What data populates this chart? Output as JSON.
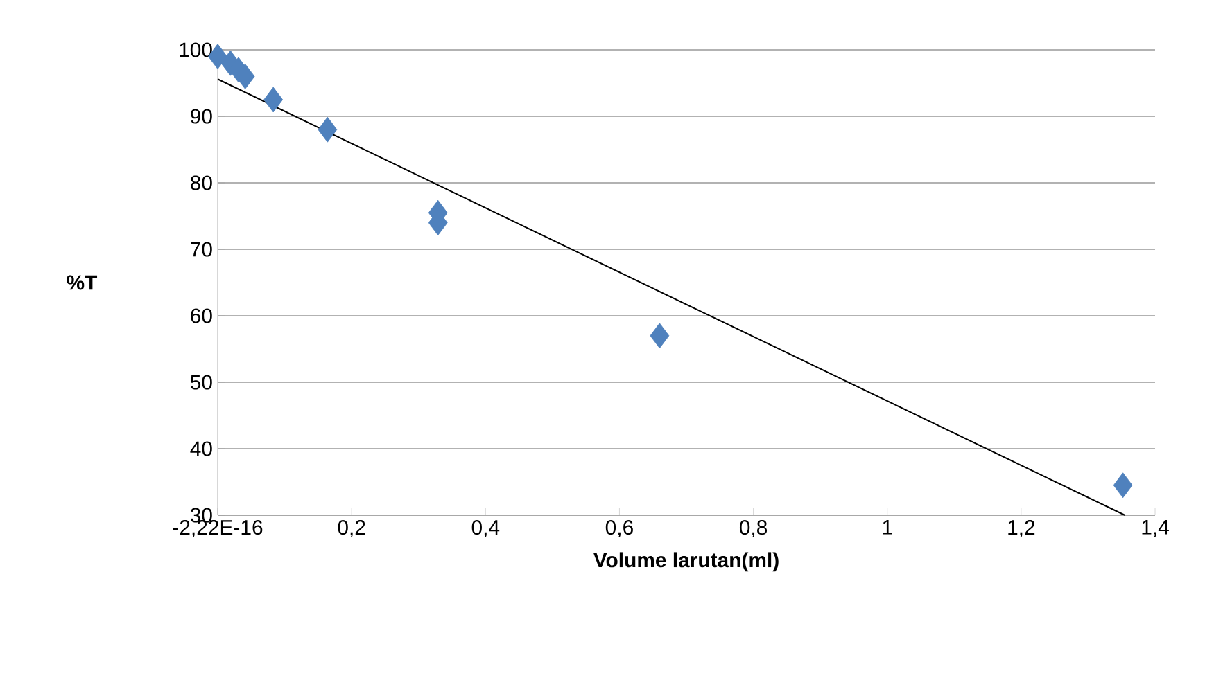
{
  "chart_data": {
    "type": "scatter",
    "xlabel": "Volume larutan(ml)",
    "ylabel": "%T",
    "xlim": [
      0,
      1.4
    ],
    "ylim": [
      30,
      100
    ],
    "xticks": [
      {
        "value": 0,
        "label": "-2,22E-16"
      },
      {
        "value": 0.2,
        "label": "0,2"
      },
      {
        "value": 0.4,
        "label": "0,4"
      },
      {
        "value": 0.6,
        "label": "0,6"
      },
      {
        "value": 0.8,
        "label": "0,8"
      },
      {
        "value": 1,
        "label": "1"
      },
      {
        "value": 1.2,
        "label": "1,2"
      },
      {
        "value": 1.4,
        "label": "1,4"
      }
    ],
    "yticks": [
      30,
      40,
      50,
      60,
      70,
      80,
      90,
      100
    ],
    "grid": "y",
    "marker": "diamond",
    "series": [
      {
        "color": "#4f81bd",
        "x": [
          0,
          0.019,
          0.031,
          0.041,
          0.083,
          0.164,
          0.329,
          0.329,
          0.66,
          1.352
        ],
        "values": [
          99,
          98,
          97,
          96,
          92.5,
          88,
          75.5,
          74,
          57,
          34.5
        ]
      },
      {
        "type": "line",
        "marker": "none",
        "color": "#000000",
        "x": [
          0,
          1.355
        ],
        "values": [
          95.6,
          30
        ]
      }
    ]
  }
}
